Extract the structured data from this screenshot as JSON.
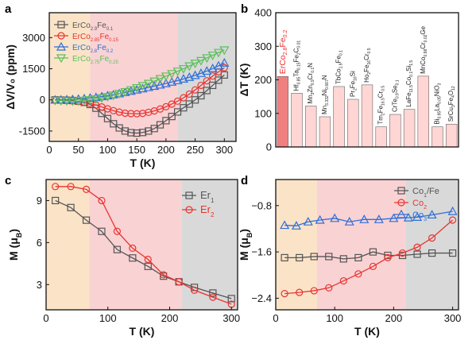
{
  "panels": {
    "a": {
      "label": "a"
    },
    "b": {
      "label": "b"
    },
    "c": {
      "label": "c"
    },
    "d": {
      "label": "d"
    }
  },
  "chart_data": [
    {
      "panel": "a",
      "type": "line",
      "xlabel": "T (K)",
      "ylabel": "ΔV/V₀ (ppm)",
      "xlim": [
        0,
        320
      ],
      "ylim": [
        -2000,
        4200
      ],
      "xticks": [
        0,
        50,
        100,
        150,
        200,
        250,
        300
      ],
      "yticks": [
        -1500,
        0,
        1500,
        3000
      ],
      "regions": [
        {
          "from": 0,
          "to": 70,
          "color": "#fbe3c8"
        },
        {
          "from": 70,
          "to": 220,
          "color": "#f9d2d4"
        },
        {
          "from": 220,
          "to": 320,
          "color": "#d9d9d9"
        }
      ],
      "legend_position": "top-left",
      "series": [
        {
          "name": "ErCo2.9Fe0.1",
          "name_base": "ErCo",
          "name_sub1": "2.9",
          "name_mid": "Fe",
          "name_sub2": "0.1",
          "color": "#555555",
          "marker": "square",
          "x": [
            10,
            20,
            30,
            40,
            50,
            60,
            70,
            80,
            90,
            100,
            110,
            120,
            130,
            140,
            150,
            160,
            170,
            180,
            190,
            200,
            210,
            220,
            230,
            240,
            250,
            260,
            270,
            280,
            290,
            300
          ],
          "y": [
            0,
            -10,
            -20,
            -30,
            -60,
            -120,
            -220,
            -400,
            -650,
            -900,
            -1150,
            -1350,
            -1500,
            -1580,
            -1600,
            -1570,
            -1500,
            -1380,
            -1200,
            -1000,
            -800,
            -580,
            -380,
            -200,
            0,
            200,
            450,
            700,
            950,
            1200
          ]
        },
        {
          "name": "ErCo2.85Fe0.15",
          "name_base": "ErCo",
          "name_sub1": "2.85",
          "name_mid": "Fe",
          "name_sub2": "0.15",
          "color": "#e8342f",
          "marker": "circle",
          "x": [
            10,
            20,
            30,
            40,
            50,
            60,
            70,
            80,
            90,
            100,
            110,
            120,
            130,
            140,
            150,
            160,
            170,
            180,
            190,
            200,
            210,
            220,
            230,
            240,
            250,
            260,
            270,
            280,
            290,
            300
          ],
          "y": [
            0,
            -10,
            -30,
            -50,
            -80,
            -120,
            -170,
            -250,
            -340,
            -430,
            -520,
            -590,
            -640,
            -660,
            -670,
            -650,
            -600,
            -530,
            -440,
            -330,
            -200,
            -60,
            100,
            280,
            480,
            700,
            920,
            1150,
            1350,
            1550
          ]
        },
        {
          "name": "ErCo2.8Fe0.2",
          "name_base": "ErCo",
          "name_sub1": "2.8",
          "name_mid": "Fe",
          "name_sub2": "0.2",
          "color": "#2f6fd6",
          "marker": "triangle-up",
          "x": [
            10,
            20,
            30,
            40,
            50,
            60,
            70,
            80,
            90,
            100,
            110,
            120,
            130,
            140,
            150,
            160,
            170,
            180,
            190,
            200,
            210,
            220,
            230,
            240,
            250,
            260,
            270,
            280,
            290,
            300
          ],
          "y": [
            0,
            0,
            10,
            20,
            40,
            60,
            90,
            120,
            160,
            200,
            250,
            300,
            360,
            420,
            480,
            540,
            600,
            660,
            720,
            790,
            860,
            930,
            1010,
            1090,
            1180,
            1280,
            1390,
            1510,
            1640,
            1780
          ]
        },
        {
          "name": "ErCo2.75Fe0.25",
          "name_base": "ErCo",
          "name_sub1": "2.75",
          "name_mid": "Fe",
          "name_sub2": "0.25",
          "color": "#5bbf5b",
          "marker": "triangle-down",
          "x": [
            10,
            20,
            30,
            40,
            50,
            60,
            70,
            80,
            90,
            100,
            110,
            120,
            130,
            140,
            150,
            160,
            170,
            180,
            190,
            200,
            210,
            220,
            230,
            240,
            250,
            260,
            270,
            280,
            290,
            300
          ],
          "y": [
            -30,
            -40,
            -50,
            -60,
            -50,
            -30,
            0,
            40,
            90,
            150,
            220,
            300,
            390,
            480,
            580,
            680,
            790,
            900,
            1020,
            1140,
            1260,
            1380,
            1500,
            1630,
            1760,
            1890,
            2020,
            2150,
            2280,
            2400
          ]
        }
      ]
    },
    {
      "panel": "b",
      "type": "bar",
      "ylabel": "ΔT (K)",
      "ylim": [
        0,
        400
      ],
      "yticks": [
        0,
        100,
        200,
        300,
        400
      ],
      "values": [
        210,
        160,
        122,
        90,
        180,
        142,
        185,
        60,
        97,
        112,
        211,
        60,
        68
      ],
      "bar_colors": [
        "#f08080",
        "#ffd6d3",
        "#ffd6d3",
        "#ffd6d3",
        "#ffd6d3",
        "#ffd6d3",
        "#ffd6d3",
        "#ffd6d3",
        "#ffd6d3",
        "#ffd6d3",
        "#ffd6d3",
        "#ffd6d3",
        "#ffd6d3"
      ],
      "label_colors": [
        "#e8342f",
        "#222222",
        "#222222",
        "#222222",
        "#222222",
        "#222222",
        "#222222",
        "#222222",
        "#222222",
        "#222222",
        "#222222",
        "#222222",
        "#222222"
      ],
      "label_lines": [
        1,
        1,
        1,
        1,
        1,
        1,
        1,
        1,
        1,
        1,
        1,
        1,
        1
      ],
      "categories": [
        [
          [
            "ErCo",
            false
          ],
          [
            "2.8",
            true
          ],
          [
            "Fe",
            false
          ],
          [
            "0.2",
            true
          ]
        ],
        [
          [
            "Hf",
            false
          ],
          [
            "0.85",
            true
          ],
          [
            "Ta",
            false
          ],
          [
            "0.15",
            true
          ],
          [
            "Fe",
            false
          ],
          [
            "2",
            true
          ],
          [
            "C",
            false
          ],
          [
            "0.01",
            true
          ]
        ],
        [
          [
            "Mn",
            false
          ],
          [
            "3",
            true
          ],
          [
            "Zn",
            false
          ],
          [
            "0.9",
            true
          ],
          [
            "Cr",
            false
          ],
          [
            "0.1",
            true
          ],
          [
            "N",
            false
          ]
        ],
        [
          [
            "Mn",
            false
          ],
          [
            "3.332",
            true
          ],
          [
            "Ni",
            false
          ],
          [
            "0.667",
            true
          ],
          [
            "N",
            false
          ]
        ],
        [
          [
            "TbCo",
            false
          ],
          [
            "1.9",
            true
          ],
          [
            "Fe",
            false
          ],
          [
            "0.1",
            true
          ]
        ],
        [
          [
            "Pr",
            false
          ],
          [
            "2",
            true
          ],
          [
            "Fe",
            false
          ],
          [
            "16",
            true
          ],
          [
            "Si",
            false
          ]
        ],
        [
          [
            "Ho",
            false
          ],
          [
            "2",
            true
          ],
          [
            "Fe",
            false
          ],
          [
            "16",
            true
          ],
          [
            "Cr",
            false
          ],
          [
            "0.5",
            true
          ]
        ],
        [
          [
            "Tm",
            false
          ],
          [
            "2",
            true
          ],
          [
            "Fe",
            false
          ],
          [
            "16.5",
            true
          ],
          [
            "Cr",
            false
          ],
          [
            "0.5",
            true
          ]
        ],
        [
          [
            "CrTe",
            false
          ],
          [
            "0.9",
            true
          ],
          [
            "Se",
            false
          ],
          [
            "0.1",
            true
          ]
        ],
        [
          [
            "LaFe",
            false
          ],
          [
            "11.5",
            true
          ],
          [
            "Co",
            false
          ],
          [
            "0.1",
            true
          ],
          [
            "Si",
            false
          ],
          [
            "1.5",
            true
          ]
        ],
        [
          [
            "MnCo",
            false
          ],
          [
            "0.98",
            true
          ],
          [
            "Cr",
            false
          ],
          [
            "0.02",
            true
          ],
          [
            "Ge",
            false
          ]
        ],
        [
          [
            "Bi",
            false
          ],
          [
            "0.95",
            true
          ],
          [
            "La",
            false
          ],
          [
            "0.05",
            true
          ],
          [
            "NiO",
            false
          ],
          [
            "3",
            true
          ]
        ],
        [
          [
            "SrCu",
            false
          ],
          [
            "3",
            true
          ],
          [
            "Fe",
            false
          ],
          [
            "4",
            true
          ],
          [
            "O",
            false
          ],
          [
            "12",
            true
          ]
        ]
      ]
    },
    {
      "panel": "c",
      "type": "line",
      "xlabel": "T (K)",
      "ylabel_base": "M (μ",
      "ylabel_sub": "B",
      "ylabel_end": ")",
      "xlim": [
        0,
        310
      ],
      "ylim": [
        1.2,
        10.5
      ],
      "xticks": [
        0,
        100,
        200,
        300
      ],
      "yticks": [
        3,
        6,
        9
      ],
      "regions": [
        {
          "from": 0,
          "to": 70,
          "color": "#fbe3c8"
        },
        {
          "from": 70,
          "to": 220,
          "color": "#f9d2d4"
        },
        {
          "from": 220,
          "to": 310,
          "color": "#d9d9d9"
        }
      ],
      "legend_position": "top-right",
      "series": [
        {
          "name": "Er1",
          "name_base": "Er",
          "name_sub1": "1",
          "name_mid": "",
          "name_sub2": "",
          "color": "#555555",
          "marker": "square",
          "x": [
            15,
            40,
            65,
            90,
            115,
            140,
            165,
            190,
            215,
            240,
            270,
            300
          ],
          "y": [
            9.0,
            8.5,
            7.6,
            6.8,
            5.5,
            4.9,
            4.3,
            3.6,
            3.2,
            2.8,
            2.4,
            2.0
          ]
        },
        {
          "name": "Er2",
          "name_base": "Er",
          "name_sub1": "2",
          "name_mid": "",
          "name_sub2": "",
          "color": "#e8342f",
          "marker": "circle",
          "x": [
            15,
            40,
            65,
            90,
            115,
            140,
            165,
            190,
            215,
            240,
            270,
            300
          ],
          "y": [
            10.0,
            10.0,
            9.8,
            9.0,
            6.8,
            5.6,
            4.8,
            3.7,
            3.2,
            2.6,
            2.1,
            1.6
          ]
        }
      ]
    },
    {
      "panel": "d",
      "type": "line",
      "xlabel": "T (K)",
      "ylabel_base": "M (μ",
      "ylabel_sub": "B",
      "ylabel_end": ")",
      "xlim": [
        0,
        310
      ],
      "ylim": [
        -2.6,
        -0.35
      ],
      "xticks": [
        0,
        100,
        200,
        300
      ],
      "yticks": [
        -2.4,
        -1.6,
        -0.8
      ],
      "regions": [
        {
          "from": 0,
          "to": 70,
          "color": "#fbe3c8"
        },
        {
          "from": 70,
          "to": 220,
          "color": "#f9d2d4"
        },
        {
          "from": 220,
          "to": 310,
          "color": "#d9d9d9"
        }
      ],
      "legend_position": "top-right",
      "series": [
        {
          "name": "Co1/Fe",
          "name_base": "Co",
          "name_sub1": "1",
          "name_mid": "/Fe",
          "name_sub2": "",
          "color": "#555555",
          "marker": "square",
          "x": [
            15,
            40,
            65,
            90,
            115,
            140,
            165,
            190,
            215,
            240,
            265,
            300
          ],
          "y": [
            -1.7,
            -1.7,
            -1.68,
            -1.68,
            -1.72,
            -1.7,
            -1.6,
            -1.66,
            -1.66,
            -1.64,
            -1.62,
            -1.62
          ]
        },
        {
          "name": "Co2",
          "name_base": "Co",
          "name_sub1": "2",
          "name_mid": "",
          "name_sub2": "",
          "color": "#e8342f",
          "marker": "circle",
          "x": [
            15,
            40,
            65,
            90,
            115,
            140,
            165,
            190,
            215,
            240,
            265,
            300
          ],
          "y": [
            -2.32,
            -2.3,
            -2.27,
            -2.22,
            -2.1,
            -1.98,
            -1.85,
            -1.7,
            -1.62,
            -1.52,
            -1.36,
            -1.05
          ]
        },
        {
          "name": "Co3",
          "name_base": "Co",
          "name_sub1": "3",
          "name_mid": "",
          "name_sub2": "",
          "color": "#2f6fd6",
          "marker": "triangle-up",
          "x": [
            15,
            35,
            55,
            75,
            100,
            125,
            150,
            175,
            200,
            225,
            240,
            265,
            300
          ],
          "y": [
            -1.14,
            -1.15,
            -1.08,
            -1.05,
            -1.02,
            -1.08,
            -1.04,
            -1.04,
            -1.02,
            -1.01,
            -1.0,
            -0.96,
            -0.9
          ]
        }
      ]
    }
  ]
}
